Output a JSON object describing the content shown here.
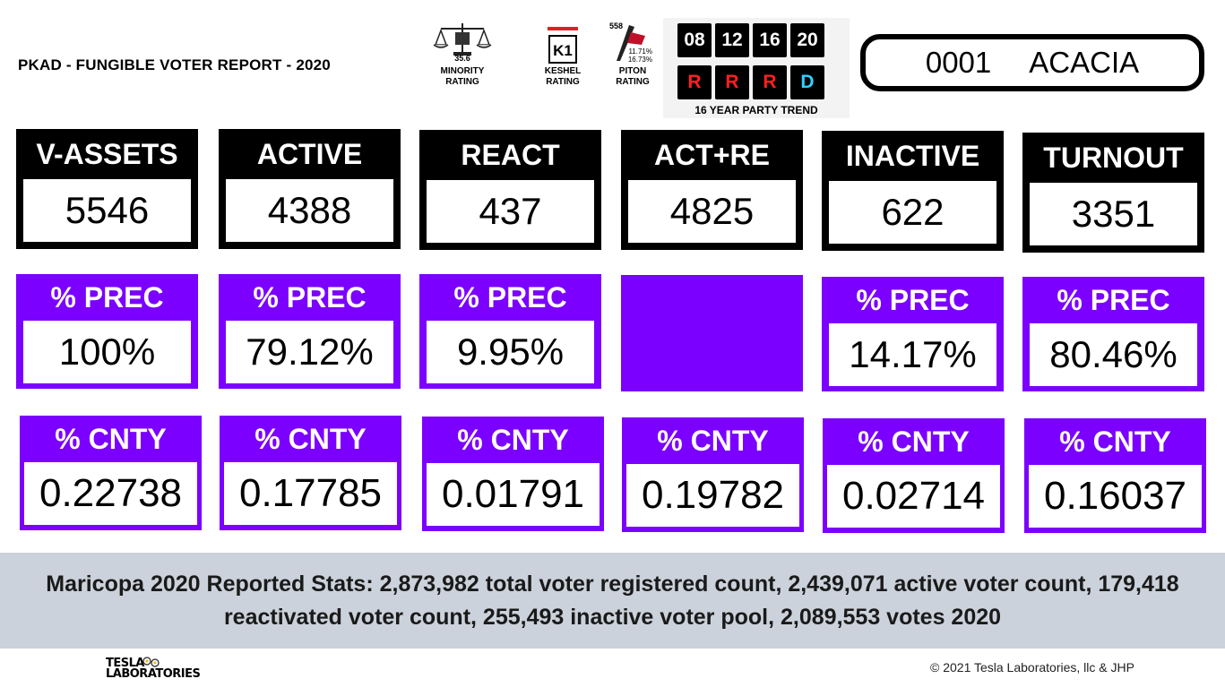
{
  "header": {
    "title": "PKAD - FUNGIBLE VOTER REPORT - 2020"
  },
  "ratings": [
    {
      "icon": "scales-icon",
      "value": "35.6",
      "label_lines": [
        "MINORITY",
        "RATING"
      ]
    },
    {
      "icon": "k1-icon",
      "value": "K1",
      "label_lines": [
        "KESHEL",
        "RATING"
      ]
    },
    {
      "icon": "piton-icon",
      "value": "558",
      "pct_a": "11.71%",
      "pct_b": "16.73%",
      "label_lines": [
        "PITON",
        "RATING"
      ]
    }
  ],
  "trend": {
    "years": [
      "08",
      "12",
      "16",
      "20"
    ],
    "parties": [
      {
        "letter": "R",
        "color": "#ff2020"
      },
      {
        "letter": "R",
        "color": "#ff2020"
      },
      {
        "letter": "R",
        "color": "#ff2020"
      },
      {
        "letter": "D",
        "color": "#30d0ff"
      }
    ],
    "caption": "16 YEAR PARTY TREND"
  },
  "precinct": {
    "id": "0001",
    "name": "ACACIA"
  },
  "colors": {
    "purple": "#7b00ff",
    "black": "#000000",
    "band": "#ccd2db"
  },
  "metrics": [
    {
      "label": "V-ASSETS",
      "value": "5546"
    },
    {
      "label": "ACTIVE",
      "value": "4388"
    },
    {
      "label": "REACT",
      "value": "437"
    },
    {
      "label": "ACT+RE",
      "value": "4825"
    },
    {
      "label": "INACTIVE",
      "value": "622"
    },
    {
      "label": "TURNOUT",
      "value": "3351"
    }
  ],
  "prec": [
    {
      "label": "% PREC",
      "value": "100%"
    },
    {
      "label": "% PREC",
      "value": "79.12%"
    },
    {
      "label": "% PREC",
      "value": "9.95%"
    },
    null,
    {
      "label": "% PREC",
      "value": "14.17%"
    },
    {
      "label": "% PREC",
      "value": "80.46%"
    }
  ],
  "cnty": [
    {
      "label": "% CNTY",
      "value": "0.22738"
    },
    {
      "label": "% CNTY",
      "value": "0.17785"
    },
    {
      "label": "% CNTY",
      "value": "0.01791"
    },
    {
      "label": "% CNTY",
      "value": "0.19782"
    },
    {
      "label": "% CNTY",
      "value": "0.02714"
    },
    {
      "label": "% CNTY",
      "value": "0.16037"
    }
  ],
  "stats": {
    "text": "Maricopa 2020 Reported Stats:  2,873,982 total voter registered count, 2,439,071 active voter count, 179,418 reactivated voter count, 255,493 inactive voter pool, 2,089,553 votes 2020"
  },
  "footer": {
    "logo_lines": [
      "TESLA",
      "LABORATORIES"
    ],
    "copyright": "© 2021 Tesla Laboratories, llc & JHP"
  }
}
